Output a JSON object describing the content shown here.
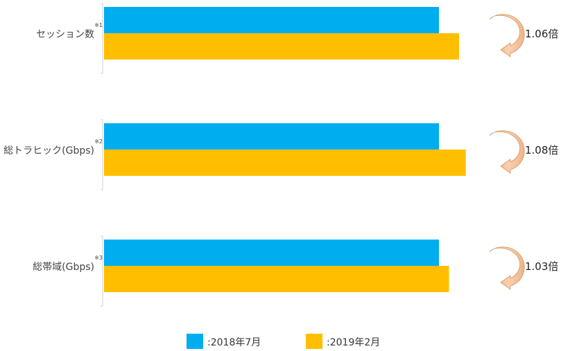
{
  "chart_data": {
    "type": "bar",
    "orientation": "horizontal",
    "title": "",
    "categories": [
      {
        "label": "セッション数",
        "note": "※1",
        "ratio": "1.06倍"
      },
      {
        "label": "総トラヒック(Gbps)",
        "note": "※2",
        "ratio": "1.08倍"
      },
      {
        "label": "総帯域(Gbps)",
        "note": "※3",
        "ratio": "1.03倍"
      }
    ],
    "series": [
      {
        "name": ":2018年7月",
        "color": "#00AEEF",
        "values": [
          1.0,
          1.0,
          1.0
        ]
      },
      {
        "name": ":2019年2月",
        "color": "#FFBF00",
        "values": [
          1.06,
          1.08,
          1.03
        ]
      }
    ],
    "axis": {
      "xlim": [
        0,
        1.1
      ],
      "gridlines": false
    },
    "legend": "bottom-center",
    "arrow_icon": "curved-arrow-icon",
    "arrow_color": "#F4B183"
  }
}
